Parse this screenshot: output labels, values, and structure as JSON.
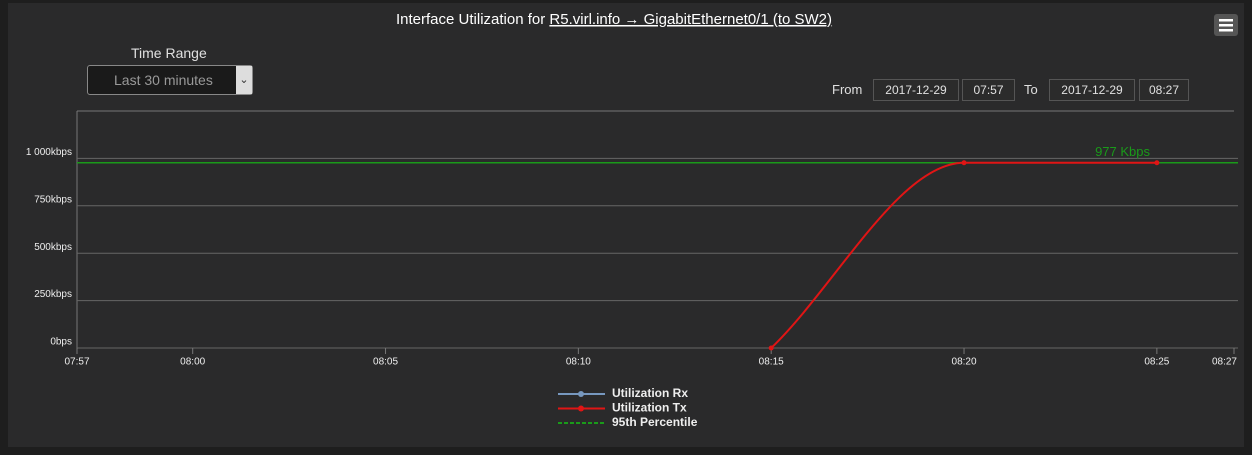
{
  "controls": {
    "time_range_label": "Time Range",
    "time_range_value": "Last 30 minutes",
    "from_label": "From",
    "from_date": "2017-12-29",
    "from_time": "07:57",
    "to_label": "To",
    "to_date": "2017-12-29",
    "to_time": "08:27"
  },
  "chart_data": {
    "type": "line",
    "title": "Interface Utilization for",
    "title_link": "R5.virl.info → GigabitEthernet0/1 (to SW2)",
    "x": [
      "08:15",
      "08:20",
      "08:25"
    ],
    "xlim": [
      "07:57",
      "08:27"
    ],
    "xticks": [
      "07:57",
      "08:00",
      "08:05",
      "08:10",
      "08:15",
      "08:20",
      "08:25",
      "08:27"
    ],
    "ylim": [
      0,
      1250
    ],
    "yticks": [
      {
        "value": 0,
        "label": "0bps"
      },
      {
        "value": 250,
        "label": "250kbps"
      },
      {
        "value": 500,
        "label": "500kbps"
      },
      {
        "value": 750,
        "label": "750kbps"
      },
      {
        "value": 1000,
        "label": "1 000kbps"
      }
    ],
    "grid": true,
    "series": [
      {
        "name": "Utilization Rx",
        "color": "#7798bf",
        "values": [
          null,
          null,
          null
        ]
      },
      {
        "name": "Utilization Tx",
        "color": "#e01515",
        "values": [
          0,
          977,
          977
        ]
      }
    ],
    "percentile": {
      "name": "95th Percentile",
      "color": "#1a9a1a",
      "value": 977,
      "label": "977 Kbps"
    }
  }
}
